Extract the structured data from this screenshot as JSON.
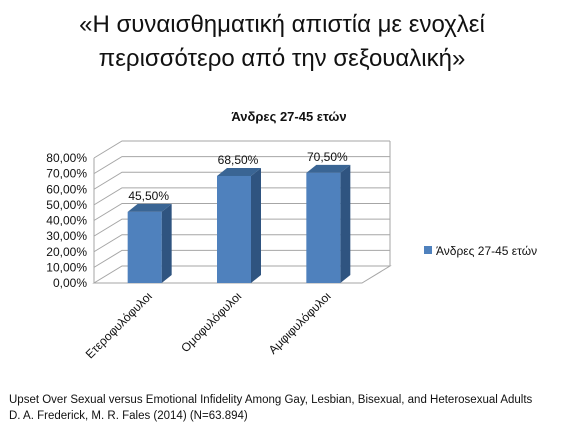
{
  "slide": {
    "title_line1": "«Η συναισθηματική απιστία με ενοχλεί",
    "title_line2": "περισσότερο από την σεξουαλική»"
  },
  "footer": {
    "line1": "Upset Over Sexual versus Emotional Infidelity Among Gay, Lesbian, Bisexual, and Heterosexual Adults",
    "line2": "D. A. Frederick, M. R. Fales (2014) (N=63.894)"
  },
  "chart_data": {
    "type": "bar",
    "title": "Άνδρες 27-45 ετών",
    "categories": [
      "Ετεροφυλόφυλοι",
      "Ομοφυλόφυλοι",
      "Αμφιφυλόφυλοι"
    ],
    "series": [
      {
        "name": "Άνδρες 27-45 ετών",
        "values": [
          45.5,
          68.5,
          70.5
        ],
        "color": "#4F81BD"
      }
    ],
    "data_labels": [
      "45,50%",
      "68,50%",
      "70,50%"
    ],
    "y_ticks": [
      "0,00%",
      "10,00%",
      "20,00%",
      "30,00%",
      "40,00%",
      "50,00%",
      "60,00%",
      "70,00%",
      "80,00%"
    ],
    "ylim": [
      0,
      80
    ],
    "grid": true,
    "legend": "right",
    "style": "3d-columns"
  }
}
